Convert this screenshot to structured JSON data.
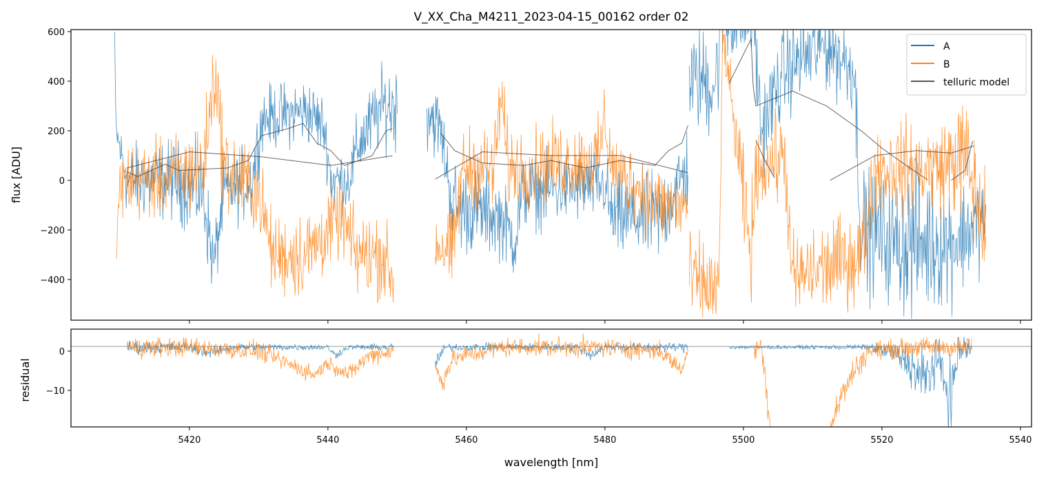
{
  "chart_data": [
    {
      "type": "line",
      "title": "V_XX_Cha_M4211_2023-04-15_00162  order 02",
      "xlabel": "",
      "ylabel": "flux [ADU]",
      "xlim": [
        5402.9,
        5541.6
      ],
      "ylim": [
        -564,
        608
      ],
      "xticks": [
        5420,
        5440,
        5460,
        5480,
        5500,
        5520,
        5540
      ],
      "yticks": [
        -400,
        -200,
        0,
        200,
        400,
        600
      ],
      "ytick_labels": [
        "−400",
        "−200",
        "0",
        "200",
        "400",
        "600"
      ],
      "legend": {
        "placement": "top-right",
        "entries": [
          "A",
          "B",
          "telluric model"
        ]
      },
      "knot_format": "[wavelength, mean_flux, noise_amplitude]",
      "series": [
        {
          "name": "A",
          "color": "#1f77b4",
          "segments": [
            [
              [
                5409.2,
                600,
                0
              ],
              [
                5409.4,
                200,
                60
              ],
              [
                5411,
                0,
                120
              ],
              [
                5418,
                0,
                130
              ],
              [
                5422,
                -50,
                150
              ],
              [
                5423.5,
                -350,
                120
              ],
              [
                5425,
                -50,
                120
              ],
              [
                5429,
                0,
                120
              ],
              [
                5430.5,
                250,
                100
              ],
              [
                5437,
                280,
                110
              ],
              [
                5439.4,
                220,
                100
              ],
              [
                5440.5,
                0,
                100
              ],
              [
                5443,
                0,
                100
              ],
              [
                5444.5,
                150,
                120
              ],
              [
                5448,
                300,
                130
              ],
              [
                5450,
                300,
                150
              ]
            ],
            [
              [
                5454.3,
                300,
                150
              ],
              [
                5456.3,
                200,
                100
              ],
              [
                5458,
                -100,
                150
              ],
              [
                5465,
                -150,
                130
              ],
              [
                5467,
                -250,
                120
              ],
              [
                5468,
                -50,
                120
              ],
              [
                5480,
                -20,
                110
              ],
              [
                5481,
                -150,
                140
              ],
              [
                5488,
                -150,
                150
              ],
              [
                5492,
                50,
                150
              ]
            ],
            [
              [
                5492.2,
                400,
                150
              ],
              [
                5496,
                400,
                200
              ],
              [
                5497,
                650,
                150
              ],
              [
                5501.5,
                650,
                150
              ],
              [
                5502.5,
                200,
                150
              ],
              [
                5506,
                450,
                150
              ],
              [
                5512,
                550,
                150
              ],
              [
                5516,
                450,
                150
              ],
              [
                5517,
                -200,
                200
              ],
              [
                5522,
                -250,
                200
              ],
              [
                5524,
                -250,
                250
              ],
              [
                5530,
                -250,
                200
              ],
              [
                5535,
                -150,
                150
              ]
            ]
          ]
        },
        {
          "name": "B",
          "color": "#ff7f0e",
          "segments": [
            [
              [
                5409.5,
                -300,
                50
              ],
              [
                5410,
                0,
                120
              ],
              [
                5416,
                0,
                130
              ],
              [
                5422,
                50,
                150
              ],
              [
                5423.7,
                450,
                150
              ],
              [
                5425,
                50,
                150
              ],
              [
                5430,
                -50,
                130
              ],
              [
                5432,
                -300,
                130
              ],
              [
                5437,
                -300,
                150
              ],
              [
                5440,
                -200,
                130
              ],
              [
                5442,
                -150,
                120
              ],
              [
                5444,
                -300,
                140
              ],
              [
                5448,
                -300,
                140
              ],
              [
                5449.5,
                -420,
                120
              ]
            ],
            [
              [
                5455.5,
                -250,
                120
              ],
              [
                5458,
                -300,
                130
              ],
              [
                5459.5,
                50,
                130
              ],
              [
                5464,
                50,
                140
              ],
              [
                5465,
                350,
                150
              ],
              [
                5466,
                50,
                130
              ],
              [
                5479,
                80,
                130
              ],
              [
                5480,
                250,
                130
              ],
              [
                5481,
                50,
                120
              ],
              [
                5488,
                -100,
                130
              ],
              [
                5492,
                -100,
                130
              ]
            ],
            [
              [
                5492.2,
                -400,
                150
              ],
              [
                5496.5,
                -450,
                150
              ],
              [
                5497,
                600,
                50
              ],
              [
                5501,
                -300,
                200
              ],
              [
                5502,
                50,
                130
              ],
              [
                5506,
                100,
                150
              ],
              [
                5507,
                -400,
                150
              ],
              [
                5517,
                -300,
                150
              ],
              [
                5519,
                50,
                150
              ],
              [
                5528,
                50,
                150
              ],
              [
                5532,
                100,
                200
              ],
              [
                5535,
                -200,
                200
              ]
            ]
          ]
        },
        {
          "name": "telluric model",
          "color": "#333333",
          "segments": [
            [
              [
                5411.0,
                50
              ],
              [
                5420.0,
                115
              ],
              [
                5430.4,
                95
              ],
              [
                5440.4,
                60
              ],
              [
                5449.4,
                100
              ]
            ],
            [
              [
                5411.0,
                35
              ],
              [
                5412.5,
                15
              ],
              [
                5416.5,
                65
              ],
              [
                5418.5,
                40
              ],
              [
                5425.5,
                50
              ],
              [
                5428.5,
                80
              ],
              [
                5430.4,
                180
              ],
              [
                5434.4,
                210
              ],
              [
                5436.4,
                230
              ],
              [
                5438.4,
                150
              ],
              [
                5440.4,
                120
              ],
              [
                5442.4,
                60
              ],
              [
                5446.4,
                100
              ],
              [
                5448.4,
                200
              ],
              [
                5449.4,
                210
              ]
            ],
            [
              [
                5455.5,
                5
              ],
              [
                5462.3,
                115
              ],
              [
                5472.2,
                100
              ],
              [
                5482.2,
                100
              ],
              [
                5492.1,
                30
              ]
            ],
            [
              [
                5456.3,
                190
              ],
              [
                5458.3,
                120
              ],
              [
                5462.3,
                70
              ],
              [
                5468.3,
                60
              ],
              [
                5472.2,
                80
              ],
              [
                5477.2,
                50
              ],
              [
                5482.2,
                80
              ],
              [
                5487.2,
                60
              ],
              [
                5489.2,
                120
              ],
              [
                5491.1,
                150
              ],
              [
                5492.1,
                230
              ]
            ],
            [
              [
                5497.9,
                390
              ],
              [
                5501.1,
                570
              ],
              [
                5501.4,
                380
              ],
              [
                5501.8,
                300
              ],
              [
                5507.1,
                360
              ],
              [
                5512.0,
                300
              ],
              [
                5517.0,
                200
              ],
              [
                5520.0,
                130
              ],
              [
                5523.5,
                60
              ],
              [
                5526.7,
                0
              ]
            ],
            [
              [
                5501.8,
                160
              ],
              [
                5503.1,
                80
              ],
              [
                5504.6,
                5
              ]
            ],
            [
              [
                5512.5,
                0
              ],
              [
                5519.0,
                100
              ],
              [
                5525.0,
                120
              ],
              [
                5530.0,
                110
              ],
              [
                5533.4,
                140
              ]
            ],
            [
              [
                5530.0,
                0
              ],
              [
                5532.0,
                40
              ],
              [
                5533.2,
                170
              ]
            ]
          ]
        }
      ]
    },
    {
      "type": "line",
      "xlabel": "wavelength [nm]",
      "ylabel": "residual",
      "xlim": [
        5402.9,
        5541.6
      ],
      "ylim": [
        -19.3,
        5.6
      ],
      "xticks": [
        5420,
        5440,
        5460,
        5480,
        5500,
        5520,
        5540
      ],
      "xtick_labels": [
        "5420",
        "5440",
        "5460",
        "5480",
        "5500",
        "5520",
        "5540"
      ],
      "yticks": [
        -10,
        0
      ],
      "ytick_labels": [
        "−10",
        "0"
      ],
      "reference_line": 1.2,
      "knot_format": "[wavelength, mean_residual, noise_amplitude]",
      "series": [
        {
          "name": "A",
          "color": "#1f77b4",
          "segments": [
            [
              [
                5411,
                1,
                1.5
              ],
              [
                5420,
                1,
                1
              ],
              [
                5423,
                -0.5,
                1.2
              ],
              [
                5426,
                1,
                0.8
              ],
              [
                5440,
                1,
                0.6
              ],
              [
                5441,
                -1,
                1
              ],
              [
                5443,
                1,
                0.5
              ],
              [
                5449.5,
                1,
                0.8
              ]
            ],
            [
              [
                5455.5,
                -3,
                2
              ],
              [
                5457,
                1,
                0.8
              ],
              [
                5476,
                1,
                0.8
              ],
              [
                5478,
                -1,
                1.2
              ],
              [
                5480,
                1,
                0.8
              ],
              [
                5492,
                1,
                1
              ]
            ],
            [
              [
                5498,
                1,
                0.4
              ],
              [
                5510,
                1,
                0.4
              ],
              [
                5518,
                1,
                0.6
              ],
              [
                5521,
                0,
                2
              ],
              [
                5524,
                -3,
                4
              ],
              [
                5526,
                -8,
                8
              ],
              [
                5528,
                -2,
                4
              ],
              [
                5530,
                -12,
                8
              ],
              [
                5531,
                0,
                4
              ],
              [
                5533,
                1,
                2
              ]
            ]
          ]
        },
        {
          "name": "B",
          "color": "#ff7f0e",
          "segments": [
            [
              [
                5411,
                1,
                2.2
              ],
              [
                5420,
                1,
                2
              ],
              [
                5430,
                0,
                2
              ],
              [
                5434,
                -3,
                1.8
              ],
              [
                5438,
                -6,
                1.8
              ],
              [
                5440,
                -3,
                1.5
              ],
              [
                5443,
                -6,
                1.8
              ],
              [
                5446,
                -1,
                2
              ],
              [
                5449.5,
                0,
                2
              ]
            ],
            [
              [
                5455.5,
                -4,
                2
              ],
              [
                5456.5,
                -8,
                2
              ],
              [
                5458,
                -2,
                2
              ],
              [
                5465,
                1,
                2
              ],
              [
                5480,
                1,
                2
              ],
              [
                5488,
                0,
                2
              ],
              [
                5490,
                -3,
                2
              ],
              [
                5491,
                -5,
                1.5
              ],
              [
                5492,
                0,
                1
              ]
            ],
            [
              [
                5501.5,
                0,
                2
              ],
              [
                5502.5,
                2,
                2
              ],
              [
                5503.2,
                -8,
                4
              ],
              [
                5504,
                -20,
                2
              ]
            ],
            [
              [
                5512,
                -22,
                2
              ],
              [
                5514,
                -12,
                3
              ],
              [
                5516,
                -5,
                3
              ],
              [
                5518,
                0,
                2
              ],
              [
                5525,
                1,
                2
              ],
              [
                5533,
                1,
                2
              ]
            ]
          ]
        }
      ]
    }
  ]
}
